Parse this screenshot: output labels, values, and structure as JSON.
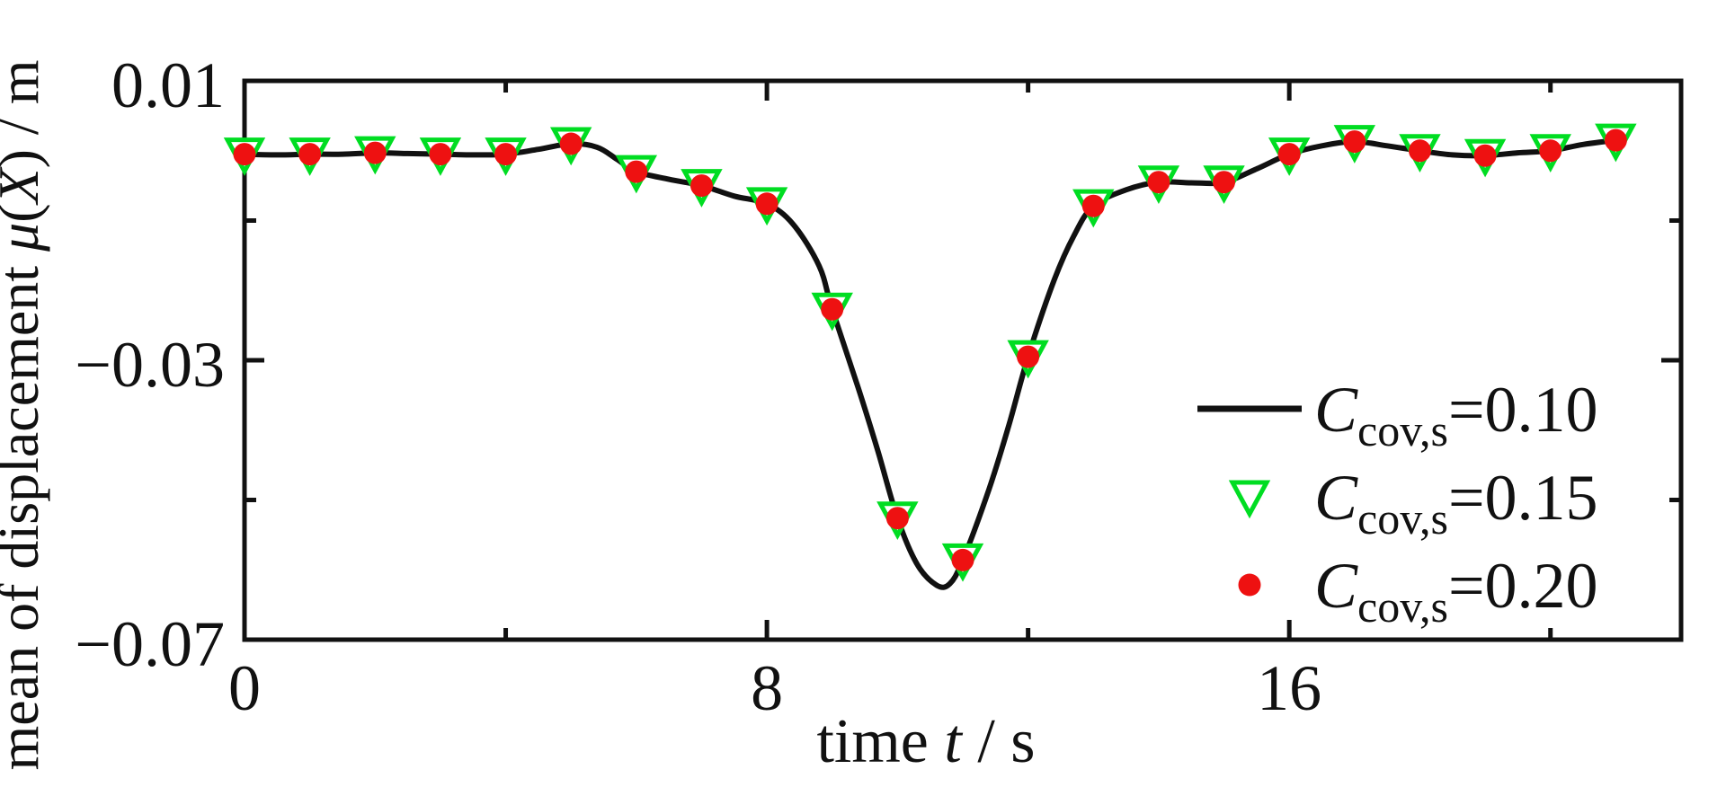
{
  "figure": {
    "background": "#ffffff",
    "axis_color": "#111111"
  },
  "chart_data": {
    "type": "line",
    "title": "",
    "xlabel": "time t / s",
    "xlabel_parts": [
      {
        "text": "time ",
        "italic": false
      },
      {
        "text": "t",
        "italic": true
      },
      {
        "text": " / s",
        "italic": false
      }
    ],
    "ylabel": "mean of displacement μ(X) / m",
    "ylabel_parts": [
      {
        "text": "mean of displacement ",
        "italic": false
      },
      {
        "text": "μ",
        "italic": true
      },
      {
        "text": "(",
        "italic": false
      },
      {
        "text": "X",
        "italic": true
      },
      {
        "text": ") / m",
        "italic": false
      }
    ],
    "xlim": [
      0,
      22
    ],
    "ylim": [
      -0.07,
      0.01
    ],
    "grid": false,
    "box": true,
    "tick_direction": "in",
    "x_ticks": {
      "major": [
        {
          "value": 0,
          "label": "0"
        },
        {
          "value": 8,
          "label": "8"
        },
        {
          "value": 16,
          "label": "16"
        }
      ],
      "minor": [
        4,
        12,
        20
      ]
    },
    "y_ticks": {
      "major": [
        {
          "value": 0.01,
          "label": "0.01"
        },
        {
          "value": -0.03,
          "label": "−0.03"
        },
        {
          "value": -0.07,
          "label": "−0.07"
        }
      ],
      "minor": [
        -0.01,
        -0.05
      ]
    },
    "series": [
      {
        "name": "C_cov,s = 0.10",
        "type": "line",
        "color": "#111111",
        "line_width": 6,
        "x": [
          0,
          0.5,
          1,
          1.5,
          2,
          2.5,
          3,
          3.5,
          4,
          4.5,
          5,
          5.4,
          5.7,
          6,
          6.5,
          7,
          7.5,
          8,
          8.4,
          8.8,
          9,
          9.4,
          9.7,
          10,
          10.3,
          10.6,
          10.8,
          11,
          11.4,
          11.7,
          12,
          12.4,
          12.7,
          13,
          13.5,
          14,
          14.5,
          15,
          15.5,
          16,
          16.5,
          17,
          17.5,
          18,
          18.5,
          19,
          19.5,
          20,
          20.5,
          21
        ],
        "y": [
          -0.0005,
          -0.0006,
          -0.0005,
          -0.0005,
          -0.0003,
          -0.0004,
          -0.0005,
          -0.0006,
          -0.0005,
          0.0002,
          0.001,
          0.0005,
          -0.0012,
          -0.003,
          -0.0041,
          -0.005,
          -0.0065,
          -0.0076,
          -0.0105,
          -0.0165,
          -0.0227,
          -0.034,
          -0.043,
          -0.0526,
          -0.0592,
          -0.0622,
          -0.062,
          -0.0586,
          -0.0485,
          -0.0395,
          -0.0295,
          -0.0185,
          -0.0122,
          -0.0079,
          -0.0056,
          -0.0045,
          -0.0046,
          -0.0045,
          -0.0026,
          -0.0005,
          0.0007,
          0.0013,
          0.0007,
          0,
          -0.0006,
          -0.0007,
          -0.0003,
          0,
          0.0009,
          0.0015
        ]
      },
      {
        "name": "C_cov,s = 0.15",
        "type": "scatter",
        "marker": "triangle-down-open",
        "color": "#00dd22",
        "x": [
          0,
          1,
          2,
          3,
          4,
          5,
          6,
          7,
          8,
          9,
          10,
          11,
          12,
          13,
          14,
          15,
          16,
          17,
          18,
          19,
          20,
          21
        ],
        "y": [
          -0.0005,
          -0.0005,
          -0.0003,
          -0.0005,
          -0.0005,
          0.001,
          -0.003,
          -0.005,
          -0.0076,
          -0.0227,
          -0.0526,
          -0.0586,
          -0.0295,
          -0.0079,
          -0.0045,
          -0.0045,
          -0.0005,
          0.0013,
          0,
          -0.0007,
          0,
          0.0015
        ]
      },
      {
        "name": "C_cov,s = 0.20",
        "type": "scatter",
        "marker": "circle-filled",
        "color": "#ee1111",
        "x": [
          0,
          1,
          2,
          3,
          4,
          5,
          6,
          7,
          8,
          9,
          10,
          11,
          12,
          13,
          14,
          15,
          16,
          17,
          18,
          19,
          20,
          21
        ],
        "y": [
          -0.0005,
          -0.0005,
          -0.0003,
          -0.0005,
          -0.0005,
          0.001,
          -0.003,
          -0.005,
          -0.0076,
          -0.0227,
          -0.0526,
          -0.0586,
          -0.0295,
          -0.0079,
          -0.0045,
          -0.0045,
          -0.0005,
          0.0013,
          0,
          -0.0007,
          0,
          0.0015
        ]
      }
    ],
    "legend": {
      "position": "inside-right-middle",
      "frame": false,
      "entries": [
        {
          "marker": "line",
          "color": "#111111",
          "var": "C",
          "sub": "cov,s",
          "value": "=0.10"
        },
        {
          "marker": "triangle-down-open",
          "color": "#00dd22",
          "var": "C",
          "sub": "cov,s",
          "value": "=0.15"
        },
        {
          "marker": "circle-filled",
          "color": "#ee1111",
          "var": "C",
          "sub": "cov,s",
          "value": "=0.20"
        }
      ]
    }
  }
}
